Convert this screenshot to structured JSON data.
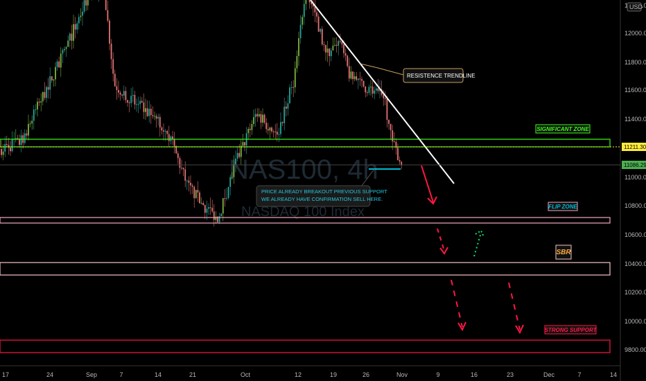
{
  "chart_data": {
    "type": "candlestick",
    "watermark": {
      "symbol": "NAS100, 4h",
      "name": "NASDAQ 100 Index"
    },
    "currency_badge": "USD",
    "price_axis": {
      "ticks": [
        "12200.00",
        "12000.00",
        "11800.00",
        "11600.00",
        "11400.00",
        "11000.00",
        "10800.00",
        "10600.00",
        "10400.00",
        "10200.00",
        "10000.00",
        "9800.00"
      ],
      "ylim": [
        9700,
        12300
      ]
    },
    "time_axis": {
      "ticks": [
        "17",
        "24",
        "Sep",
        "7",
        "14",
        "21",
        "Oct",
        "12",
        "19",
        "26",
        "Nov",
        "9",
        "16",
        "23",
        "Dec",
        "7",
        "14"
      ]
    },
    "price_labels": [
      {
        "name": "current-price-label",
        "value": "11211.30",
        "bg": "#ffeb3b",
        "fg": "#000000"
      },
      {
        "name": "last-close-label",
        "value": "11086.29",
        "bg": "#4caf50",
        "fg": "#000000"
      }
    ],
    "zones": [
      {
        "name": "significant-zone",
        "label": "SIGNIFICANT  ZONE",
        "from": 11170,
        "to": 11230,
        "color": "#39ff14"
      },
      {
        "name": "flip-zone",
        "label": "FLIP ZONE",
        "from": 10690,
        "to": 10730,
        "color": "#f4a6c0"
      },
      {
        "name": "sbr-zone",
        "label": "SBR",
        "from": 10330,
        "to": 10420,
        "color": "#f6c6c6"
      },
      {
        "name": "strong-support-zone",
        "label": "STRONG SUPPORT",
        "from": 9775,
        "to": 9870,
        "color": "#ff1744"
      }
    ],
    "annotations": {
      "trendline_note": "RESISTENCE TRENDLINE",
      "breakout_note_line1": "PRICE ALREADY BREAKOUT PREVIOUS SUPPORT",
      "breakout_note_line2": "WE ALREADY HAVE CONFIRMATION SELL HERE."
    },
    "colors": {
      "up": "#26a69a",
      "up_alt": "#7cb342",
      "down": "#e57373",
      "trendline": "#ffffff",
      "support_mark": "#00bcd4",
      "down_arrow": "#ff1744",
      "up_arrow": "#00e676"
    },
    "ohlc_summary": {
      "start": 11200,
      "peak_sep": 12300,
      "low_sep": 10700,
      "peak_oct": 12300,
      "last": 11086.29
    }
  }
}
